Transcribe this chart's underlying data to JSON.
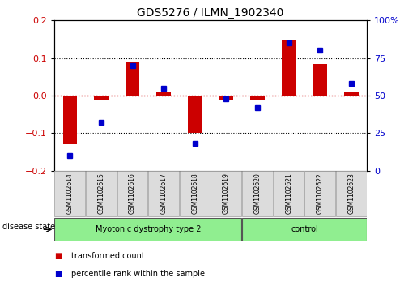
{
  "title": "GDS5276 / ILMN_1902340",
  "samples": [
    "GSM1102614",
    "GSM1102615",
    "GSM1102616",
    "GSM1102617",
    "GSM1102618",
    "GSM1102619",
    "GSM1102620",
    "GSM1102621",
    "GSM1102622",
    "GSM1102623"
  ],
  "red_bars": [
    -0.13,
    -0.01,
    0.09,
    0.01,
    -0.1,
    -0.01,
    -0.01,
    0.15,
    0.085,
    0.01
  ],
  "blue_dots": [
    10,
    32,
    70,
    55,
    18,
    48,
    42,
    85,
    80,
    58
  ],
  "bar_color": "#cc0000",
  "dot_color": "#0000cc",
  "ylim_left": [
    -0.2,
    0.2
  ],
  "ylim_right": [
    0,
    100
  ],
  "yticks_left": [
    -0.2,
    -0.1,
    0.0,
    0.1,
    0.2
  ],
  "yticks_right": [
    0,
    25,
    50,
    75,
    100
  ],
  "ytick_labels_right": [
    "0",
    "25",
    "50",
    "75",
    "100%"
  ],
  "group1_label": "Myotonic dystrophy type 2",
  "group2_label": "control",
  "group1_indices": [
    0,
    1,
    2,
    3,
    4,
    5
  ],
  "group2_indices": [
    6,
    7,
    8,
    9
  ],
  "disease_state_label": "disease state",
  "legend1_label": "transformed count",
  "legend2_label": "percentile rank within the sample",
  "bg_color": "#dcdcdc",
  "group_color": "#90ee90",
  "hline_color": "#cc0000",
  "dotted_color": "#000000",
  "bar_width": 0.45
}
